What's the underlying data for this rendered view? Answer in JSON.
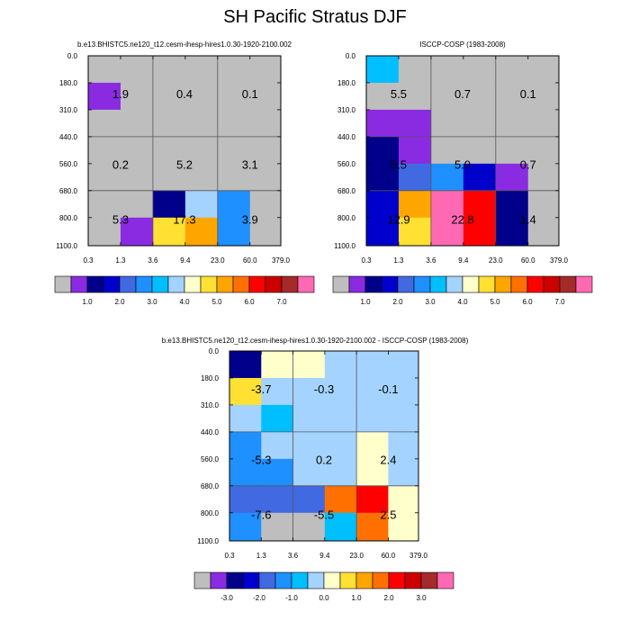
{
  "title": "SH Pacific Stratus DJF",
  "palette": [
    "#bebebe",
    "#8a2be2",
    "#00008b",
    "#0000cd",
    "#4169e1",
    "#1e90ff",
    "#00bfff",
    "#a4d3ff",
    "#ffffcc",
    "#ffe033",
    "#ffa500",
    "#ff7000",
    "#ff0000",
    "#cc0000",
    "#a52a2a",
    "#ff69b4"
  ],
  "chart_data": [
    {
      "type": "heatmap",
      "title": "b.e13.BHISTC5.ne120_t12.cesm-ihesp-hires1.0.30-1920-2100.002",
      "x_ticks": [
        "0.3",
        "1.3",
        "3.6",
        "9.4",
        "23.0",
        "60.0",
        "379.0"
      ],
      "y_ticks": [
        "0.0",
        "180.0",
        "310.0",
        "440.0",
        "560.0",
        "680.0",
        "800.0",
        "1100.0"
      ],
      "cells": [
        [
          0,
          0,
          0,
          0,
          0,
          0
        ],
        [
          1,
          0,
          0,
          0,
          0,
          0
        ],
        [
          0,
          0,
          0,
          0,
          0,
          0
        ],
        [
          0,
          0,
          0,
          0,
          0,
          0
        ],
        [
          0,
          0,
          0,
          0,
          0,
          0
        ],
        [
          0,
          0,
          2,
          7,
          5,
          0
        ],
        [
          0,
          1,
          9,
          10,
          5,
          0
        ],
        [
          0,
          8,
          11,
          3,
          1,
          0
        ]
      ],
      "box_values": [
        "1.9",
        "0.4",
        "0.1",
        "0.2",
        "5.2",
        "3.1",
        "5.3",
        "17.3",
        "3.9"
      ],
      "colorbar_labels": [
        "1.0",
        "2.0",
        "3.0",
        "4.0",
        "5.0",
        "6.0",
        "7.0"
      ]
    },
    {
      "type": "heatmap",
      "title": "ISCCP-COSP (1983-2008)",
      "x_ticks": [
        "0.3",
        "1.3",
        "3.6",
        "9.4",
        "23.0",
        "60.0",
        "379.0"
      ],
      "y_ticks": [
        "0.0",
        "180.0",
        "310.0",
        "440.0",
        "560.0",
        "680.0",
        "800.0",
        "1100.0"
      ],
      "cells": [
        [
          6,
          0,
          0,
          0,
          0,
          0
        ],
        [
          0,
          0,
          0,
          0,
          0,
          0
        ],
        [
          1,
          1,
          0,
          0,
          0,
          0
        ],
        [
          2,
          1,
          0,
          0,
          0,
          0
        ],
        [
          2,
          4,
          5,
          3,
          1,
          0
        ],
        [
          3,
          10,
          15,
          12,
          2,
          0
        ],
        [
          3,
          9,
          15,
          12,
          2,
          0
        ],
        [
          3,
          8,
          8,
          2,
          0,
          0
        ]
      ],
      "box_values": [
        "5.5",
        "0.7",
        "0.1",
        "5.5",
        "5.0",
        "0.7",
        "12.9",
        "22.8",
        "1.4"
      ],
      "colorbar_labels": [
        "1.0",
        "2.0",
        "3.0",
        "4.0",
        "5.0",
        "6.0",
        "7.0"
      ]
    },
    {
      "type": "heatmap",
      "title": "b.e13.BHISTC5.ne120_t12.cesm-ihesp-hires1.0.30-1920-2100.002 - ISCCP-COSP (1983-2008)",
      "x_ticks": [
        "0.3",
        "1.3",
        "3.6",
        "9.4",
        "23.0",
        "60.0",
        "379.0"
      ],
      "y_ticks": [
        "0.0",
        "180.0",
        "310.0",
        "440.0",
        "560.0",
        "680.0",
        "800.0",
        "1100.0"
      ],
      "cells": [
        [
          2,
          8,
          8,
          7,
          7,
          7
        ],
        [
          9,
          7,
          7,
          7,
          7,
          7
        ],
        [
          7,
          6,
          7,
          7,
          7,
          7
        ],
        [
          5,
          7,
          7,
          7,
          8,
          7
        ],
        [
          5,
          5,
          7,
          7,
          8,
          7
        ],
        [
          4,
          4,
          4,
          11,
          12,
          8
        ],
        [
          5,
          0,
          0,
          6,
          11,
          8
        ],
        [
          5,
          7,
          10,
          9,
          9,
          8
        ]
      ],
      "box_values": [
        "-3.7",
        "-0.3",
        "-0.1",
        "-5.3",
        "0.2",
        "2.4",
        "-7.6",
        "-5.5",
        "2.5"
      ],
      "colorbar_labels": [
        "-3.0",
        "-2.0",
        "-1.0",
        "0.0",
        "1.0",
        "2.0",
        "3.0"
      ]
    }
  ]
}
